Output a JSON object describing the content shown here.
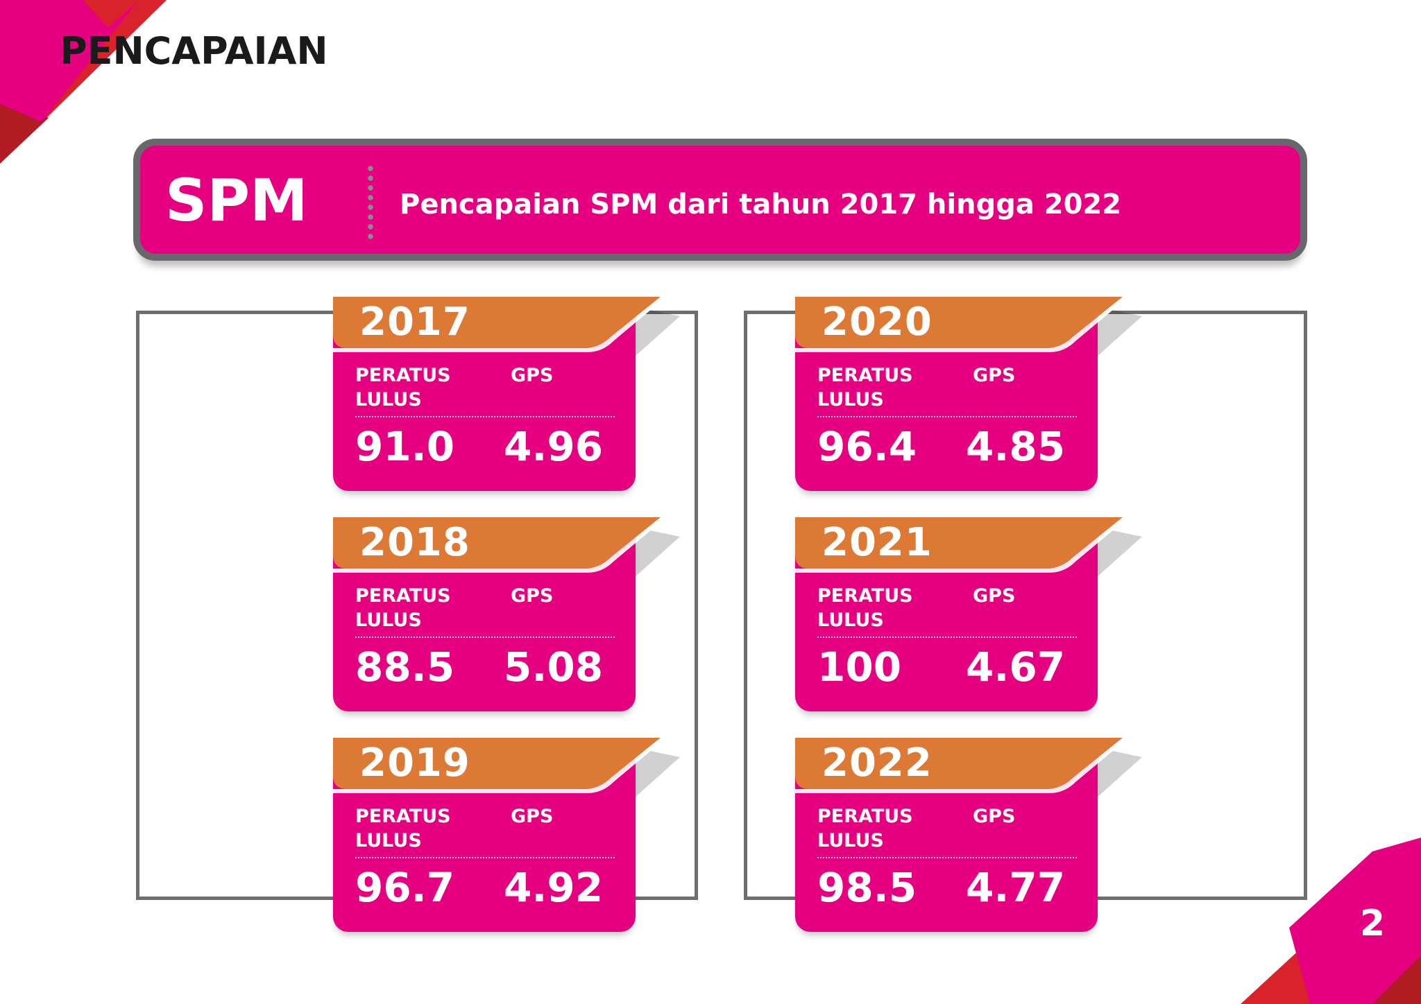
{
  "page": {
    "title": "PENCAPAIAN",
    "number": "2"
  },
  "banner": {
    "label": "SPM",
    "subtitle": "Pencapaian SPM dari tahun 2017 hingga 2022"
  },
  "colors": {
    "magenta": "#e5007f",
    "orange": "#dc7a35",
    "red": "#d8232a",
    "gray": "#6d6e71"
  },
  "cards": [
    {
      "year": "2017",
      "pct_label": "PERATUS LULUS",
      "gps_label": "GPS",
      "pct": "91.0",
      "gps": "4.96"
    },
    {
      "year": "2018",
      "pct_label": "PERATUS LULUS",
      "gps_label": "GPS",
      "pct": "88.5",
      "gps": "5.08"
    },
    {
      "year": "2019",
      "pct_label": "PERATUS LULUS",
      "gps_label": "GPS",
      "pct": "96.7",
      "gps": "4.92"
    },
    {
      "year": "2020",
      "pct_label": "PERATUS LULUS",
      "gps_label": "GPS",
      "pct": "96.4",
      "gps": "4.85"
    },
    {
      "year": "2021",
      "pct_label": "PERATUS LULUS",
      "gps_label": "GPS",
      "pct": "100",
      "gps": "4.67"
    },
    {
      "year": "2022",
      "pct_label": "PERATUS LULUS",
      "gps_label": "GPS",
      "pct": "98.5",
      "gps": "4.77"
    }
  ]
}
